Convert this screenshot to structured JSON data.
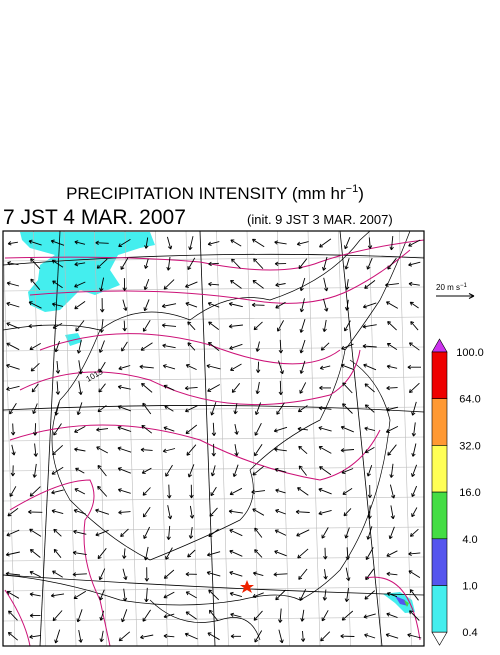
{
  "header": {
    "title": {
      "text": "PRECIPITATION INTENSITY (mm hr",
      "sup": "−1",
      "end": ")"
    },
    "valid_time": "7 JST 4 MAR. 2007",
    "init_time": "(init. 9 JST 3 MAR. 2007)"
  },
  "map": {
    "isobar_label": "1013"
  },
  "scale_arrow": {
    "label": "20 m s",
    "sup": "−1"
  },
  "colorbar": {
    "over_color": "#cc33ee",
    "under_color": "#ffffff",
    "colors": [
      "#ee0000",
      "#ff9933",
      "#ffff55",
      "#44dd44",
      "#5555ee",
      "#44eeee"
    ],
    "labels": [
      "100.0",
      "64.0",
      "32.0",
      "16.0",
      "4.0",
      "1.0",
      "0.4"
    ]
  }
}
